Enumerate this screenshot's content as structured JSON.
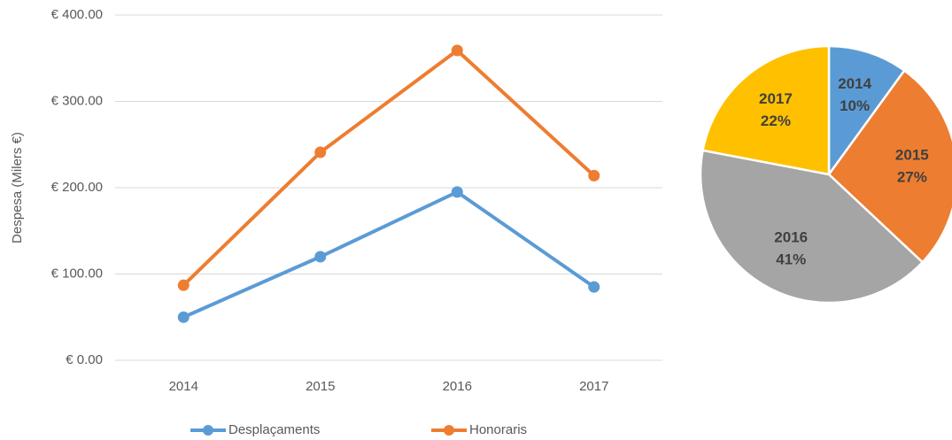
{
  "chart_data": [
    {
      "type": "line",
      "y_label": "Despesa (Milers €)",
      "categories": [
        "2014",
        "2015",
        "2016",
        "2017"
      ],
      "series": [
        {
          "name": "Desplaçaments",
          "color": "#5b9bd5",
          "values": [
            50,
            120,
            195,
            85
          ]
        },
        {
          "name": "Honoraris",
          "color": "#ed7d31",
          "values": [
            87,
            241,
            359,
            214
          ]
        }
      ],
      "ylim": [
        0,
        400
      ],
      "yticks": [
        {
          "value": 0,
          "label": "€ 0.00"
        },
        {
          "value": 100,
          "label": "€ 100.00"
        },
        {
          "value": 200,
          "label": "€ 200.00"
        },
        {
          "value": 300,
          "label": "€ 300.00"
        },
        {
          "value": 400,
          "label": "€ 400.00"
        }
      ],
      "grid": true,
      "legend": "bottom"
    },
    {
      "type": "pie",
      "categories": [
        "2014",
        "2015",
        "2016",
        "2017"
      ],
      "values": [
        10,
        27,
        41,
        22
      ],
      "value_labels": [
        "10%",
        "27%",
        "41%",
        "22%"
      ],
      "colors": [
        "#5b9bd5",
        "#ed7d31",
        "#a5a5a5",
        "#ffc000"
      ]
    }
  ]
}
